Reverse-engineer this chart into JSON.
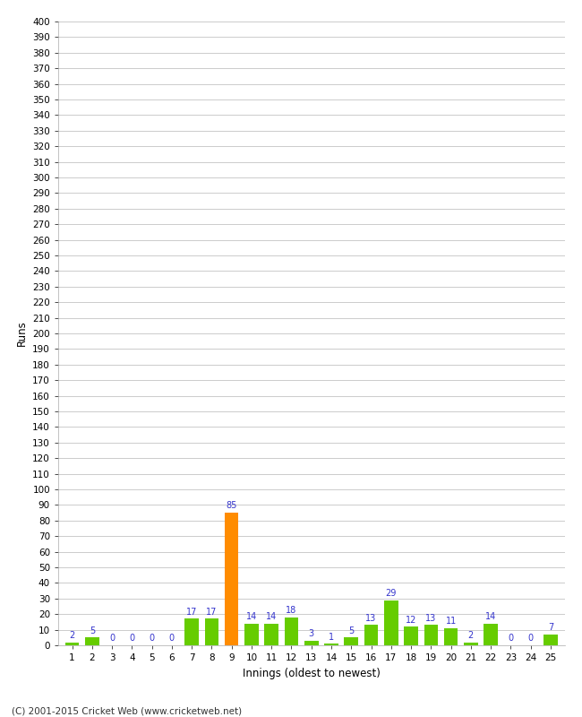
{
  "title": "",
  "xlabel": "Innings (oldest to newest)",
  "ylabel": "Runs",
  "values": [
    2,
    5,
    0,
    0,
    0,
    0,
    17,
    17,
    85,
    14,
    14,
    18,
    3,
    1,
    5,
    13,
    29,
    12,
    13,
    11,
    2,
    14,
    0,
    0,
    7
  ],
  "innings": [
    1,
    2,
    3,
    4,
    5,
    6,
    7,
    8,
    9,
    10,
    11,
    12,
    13,
    14,
    15,
    16,
    17,
    18,
    19,
    20,
    21,
    22,
    23,
    24,
    25
  ],
  "highlight_index": 8,
  "bar_color_normal": "#66cc00",
  "bar_color_highlight": "#ff8c00",
  "label_color": "#3333cc",
  "background_color": "#ffffff",
  "grid_color": "#cccccc",
  "yticks": [
    0,
    10,
    20,
    30,
    40,
    50,
    60,
    70,
    80,
    90,
    100,
    110,
    120,
    130,
    140,
    150,
    160,
    170,
    180,
    190,
    200,
    210,
    220,
    230,
    240,
    250,
    260,
    270,
    280,
    290,
    300,
    310,
    320,
    330,
    340,
    350,
    360,
    370,
    380,
    390,
    400
  ],
  "ylim": [
    0,
    400
  ],
  "footer": "(C) 2001-2015 Cricket Web (www.cricketweb.net)"
}
